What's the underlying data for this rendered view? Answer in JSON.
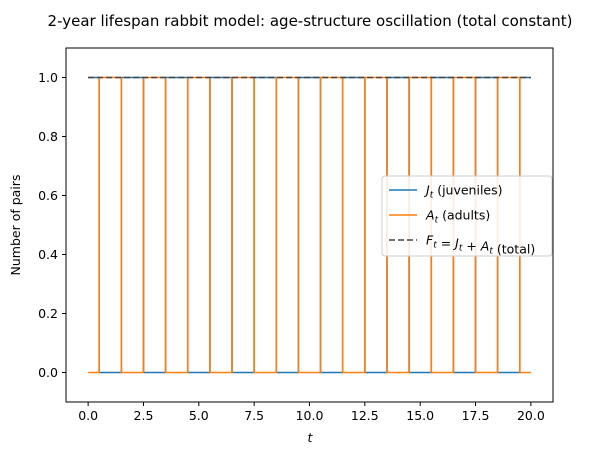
{
  "chart_data": {
    "type": "line",
    "drawstyle": "steps-mid",
    "title": "2-year lifespan rabbit model: age-structure oscillation (total constant)",
    "xlabel": "t",
    "ylabel": "Number of pairs",
    "xlim": [
      -1,
      21
    ],
    "ylim": [
      -0.1,
      1.1
    ],
    "xticks": [
      0.0,
      2.5,
      5.0,
      7.5,
      10.0,
      12.5,
      15.0,
      17.5,
      20.0
    ],
    "xtick_labels": [
      "0.0",
      "2.5",
      "5.0",
      "7.5",
      "10.0",
      "12.5",
      "15.0",
      "17.5",
      "20.0"
    ],
    "yticks": [
      0.0,
      0.2,
      0.4,
      0.6,
      0.8,
      1.0
    ],
    "ytick_labels": [
      "0.0",
      "0.2",
      "0.4",
      "0.6",
      "0.8",
      "1.0"
    ],
    "x": [
      0,
      1,
      2,
      3,
      4,
      5,
      6,
      7,
      8,
      9,
      10,
      11,
      12,
      13,
      14,
      15,
      16,
      17,
      18,
      19,
      20
    ],
    "series": [
      {
        "name": "J_t (juveniles)",
        "legend_main": "J",
        "legend_sub": "t",
        "legend_rest": " (juveniles)",
        "color": "#1f77b4",
        "style": "solid",
        "values": [
          1,
          0,
          1,
          0,
          1,
          0,
          1,
          0,
          1,
          0,
          1,
          0,
          1,
          0,
          1,
          0,
          1,
          0,
          1,
          0,
          1
        ]
      },
      {
        "name": "A_t (adults)",
        "legend_main": "A",
        "legend_sub": "t",
        "legend_rest": " (adults)",
        "color": "#ff7f0e",
        "style": "solid",
        "values": [
          0,
          1,
          0,
          1,
          0,
          1,
          0,
          1,
          0,
          1,
          0,
          1,
          0,
          1,
          0,
          1,
          0,
          1,
          0,
          1,
          0
        ]
      },
      {
        "name": "F_t = J_t + A_t (total)",
        "legend_main": "F",
        "legend_sub": "t",
        "legend_rest": " (total)",
        "color": "#444444",
        "style": "dashed",
        "values": [
          1,
          1,
          1,
          1,
          1,
          1,
          1,
          1,
          1,
          1,
          1,
          1,
          1,
          1,
          1,
          1,
          1,
          1,
          1,
          1,
          1
        ]
      }
    ],
    "legend_location": "center-right"
  }
}
